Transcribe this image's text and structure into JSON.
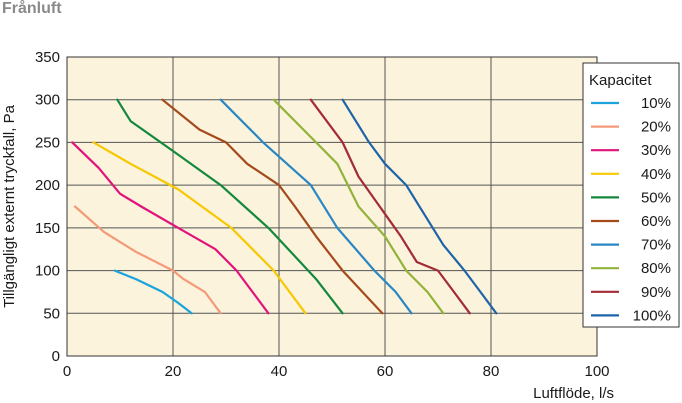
{
  "title": "Frånluft",
  "chart_data": {
    "type": "line",
    "xlabel": "Luftflöde, l/s",
    "ylabel": "Tillgängligt externt tryckfall, Pa",
    "xlim": [
      0,
      100
    ],
    "ylim": [
      0,
      350
    ],
    "xticks": [
      "0",
      "20",
      "40",
      "60",
      "80",
      "100"
    ],
    "yticks": [
      "0",
      "50",
      "100",
      "150",
      "200",
      "250",
      "300",
      "350"
    ],
    "grid": true,
    "plot_background": "#fbf3dc",
    "legend": {
      "title": "Kapacitet",
      "placement": "right"
    },
    "series": [
      {
        "name": "10%",
        "color": "#1aa3dc",
        "points": [
          [
            9,
            100
          ],
          [
            13,
            90
          ],
          [
            18,
            75
          ],
          [
            21,
            62
          ],
          [
            23.5,
            50
          ]
        ]
      },
      {
        "name": "20%",
        "color": "#f39a78",
        "points": [
          [
            1.5,
            175
          ],
          [
            7,
            145
          ],
          [
            13,
            122
          ],
          [
            20,
            100
          ],
          [
            22,
            90
          ],
          [
            26,
            75
          ],
          [
            29,
            50
          ]
        ]
      },
      {
        "name": "30%",
        "color": "#e2137a",
        "points": [
          [
            1,
            250
          ],
          [
            6,
            220
          ],
          [
            10,
            190
          ],
          [
            14,
            175
          ],
          [
            21,
            150
          ],
          [
            28,
            125
          ],
          [
            32,
            100
          ],
          [
            38,
            50
          ]
        ]
      },
      {
        "name": "40%",
        "color": "#f7c800",
        "points": [
          [
            5,
            250
          ],
          [
            12,
            225
          ],
          [
            21,
            195
          ],
          [
            31,
            150
          ],
          [
            35,
            125
          ],
          [
            39,
            100
          ],
          [
            45,
            50
          ]
        ]
      },
      {
        "name": "50%",
        "color": "#14883d",
        "points": [
          [
            9.5,
            300
          ],
          [
            12,
            275
          ],
          [
            20,
            240
          ],
          [
            29,
            200
          ],
          [
            38,
            150
          ],
          [
            44,
            110
          ],
          [
            47,
            90
          ],
          [
            52,
            50
          ]
        ]
      },
      {
        "name": "60%",
        "color": "#a44a1c",
        "points": [
          [
            18,
            300
          ],
          [
            25,
            265
          ],
          [
            30,
            250
          ],
          [
            34,
            225
          ],
          [
            40,
            200
          ],
          [
            43,
            175
          ],
          [
            47,
            140
          ],
          [
            52,
            100
          ],
          [
            59.5,
            50
          ]
        ]
      },
      {
        "name": "70%",
        "color": "#2a87c4",
        "points": [
          [
            29,
            300
          ],
          [
            37,
            250
          ],
          [
            46,
            200
          ],
          [
            51,
            150
          ],
          [
            58,
            100
          ],
          [
            62,
            75
          ],
          [
            65,
            50
          ]
        ]
      },
      {
        "name": "80%",
        "color": "#92b33a",
        "points": [
          [
            39,
            300
          ],
          [
            47,
            250
          ],
          [
            51,
            225
          ],
          [
            53,
            200
          ],
          [
            55,
            175
          ],
          [
            60,
            140
          ],
          [
            64,
            100
          ],
          [
            68,
            75
          ],
          [
            71,
            50
          ]
        ]
      },
      {
        "name": "90%",
        "color": "#a32b36",
        "points": [
          [
            46,
            300
          ],
          [
            52,
            250
          ],
          [
            55,
            210
          ],
          [
            59,
            175
          ],
          [
            63,
            140
          ],
          [
            66,
            110
          ],
          [
            70,
            100
          ],
          [
            73,
            75
          ],
          [
            76,
            50
          ]
        ]
      },
      {
        "name": "100%",
        "color": "#1f64a8",
        "points": [
          [
            52,
            300
          ],
          [
            57,
            250
          ],
          [
            60,
            225
          ],
          [
            64,
            200
          ],
          [
            68,
            160
          ],
          [
            71,
            130
          ],
          [
            75,
            100
          ],
          [
            78,
            75
          ],
          [
            81,
            50
          ]
        ]
      }
    ]
  }
}
